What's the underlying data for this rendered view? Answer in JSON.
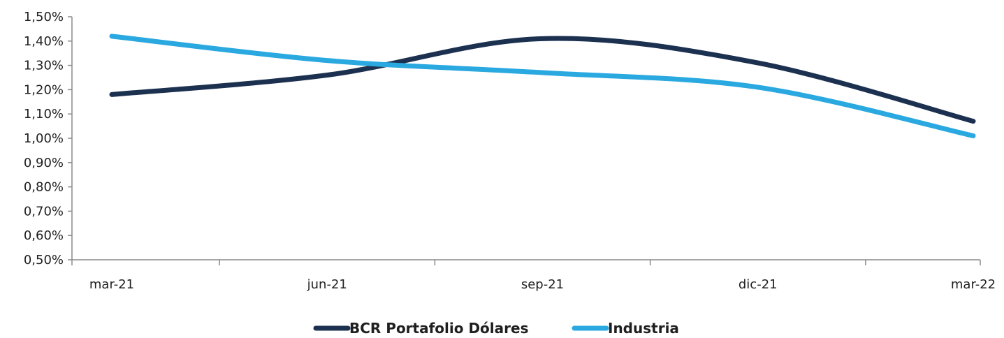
{
  "chart_data": {
    "type": "line",
    "categories": [
      "mar-21",
      "jun-21",
      "sep-21",
      "dic-21",
      "mar-22"
    ],
    "series": [
      {
        "name": "BCR Portafolio Dólares",
        "values": [
          1.18,
          1.26,
          1.41,
          1.31,
          1.07
        ],
        "color": "#1c3050"
      },
      {
        "name": "Industria",
        "values": [
          1.42,
          1.32,
          1.27,
          1.21,
          1.01
        ],
        "color": "#2aa8e0"
      }
    ],
    "ylim": [
      0.5,
      1.5
    ],
    "yticks": [
      "0,50%",
      "0,60%",
      "0,70%",
      "0,80%",
      "0,90%",
      "1,00%",
      "1,10%",
      "1,20%",
      "1,30%",
      "1,40%",
      "1,50%"
    ],
    "xlabel": "",
    "ylabel": "",
    "title": "",
    "grid": false,
    "legend_position": "bottom",
    "smooth": true
  }
}
